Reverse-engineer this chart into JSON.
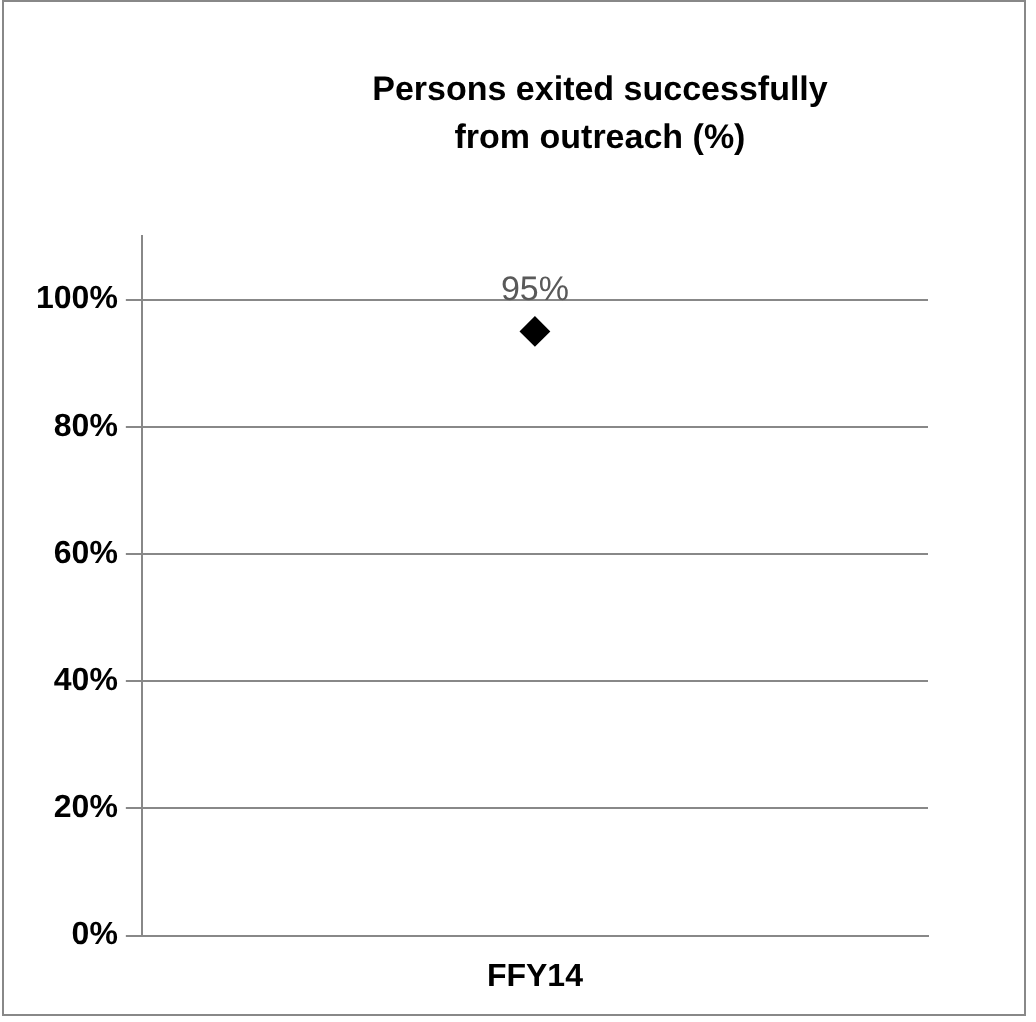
{
  "chart_data": {
    "type": "line",
    "title": "Persons exited successfully from outreach (%)",
    "categories": [
      "FFY14"
    ],
    "series": [
      {
        "color": "#000000",
        "values": [
          95
        ],
        "value_labels": [
          "95%"
        ]
      }
    ],
    "ylim": [
      0,
      110
    ],
    "yticks": [
      {
        "value": 0,
        "label": "0%"
      },
      {
        "value": 20,
        "label": "20%"
      },
      {
        "value": 40,
        "label": "40%"
      },
      {
        "value": 60,
        "label": "60%"
      },
      {
        "value": 80,
        "label": "80%"
      },
      {
        "value": 100,
        "label": "100%"
      }
    ],
    "grid": "y",
    "legend": false,
    "marker": "diamond"
  }
}
